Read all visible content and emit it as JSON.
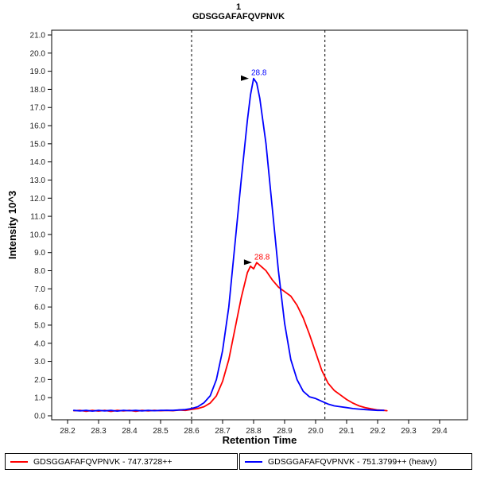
{
  "chart_data": {
    "type": "line",
    "title": "1",
    "subtitle": "GDSGGAFAFQVPNVK",
    "xlabel": "Retention Time",
    "ylabel": "Intensity 10^3",
    "xlim": [
      28.15,
      29.49
    ],
    "ylim": [
      -0.2,
      21.3
    ],
    "grid": false,
    "legend_position": "bottom",
    "x_ticks": [
      28.2,
      28.3,
      28.4,
      28.5,
      28.6,
      28.7,
      28.8,
      28.9,
      29.0,
      29.1,
      29.2,
      29.3,
      29.4
    ],
    "y_ticks": [
      0.0,
      1.0,
      2.0,
      3.0,
      4.0,
      5.0,
      6.0,
      7.0,
      8.0,
      9.0,
      10.0,
      11.0,
      12.0,
      13.0,
      14.0,
      15.0,
      16.0,
      17.0,
      18.0,
      19.0,
      20.0,
      21.0
    ],
    "integration_boundaries": [
      28.6,
      29.03
    ],
    "series": [
      {
        "name": "GDSGGAFAFQVPNVK - 747.3728++",
        "color": "#ff0000",
        "annotation": {
          "text": "28.8",
          "x": 28.81,
          "y": 8.45
        },
        "points": [
          [
            28.22,
            0.28
          ],
          [
            28.24,
            0.3
          ],
          [
            28.26,
            0.25
          ],
          [
            28.28,
            0.3
          ],
          [
            28.3,
            0.26
          ],
          [
            28.32,
            0.3
          ],
          [
            28.34,
            0.24
          ],
          [
            28.36,
            0.3
          ],
          [
            28.38,
            0.27
          ],
          [
            28.4,
            0.3
          ],
          [
            28.42,
            0.25
          ],
          [
            28.44,
            0.3
          ],
          [
            28.46,
            0.27
          ],
          [
            28.48,
            0.3
          ],
          [
            28.5,
            0.28
          ],
          [
            28.52,
            0.3
          ],
          [
            28.54,
            0.28
          ],
          [
            28.56,
            0.32
          ],
          [
            28.58,
            0.3
          ],
          [
            28.6,
            0.35
          ],
          [
            28.62,
            0.4
          ],
          [
            28.64,
            0.5
          ],
          [
            28.66,
            0.7
          ],
          [
            28.68,
            1.1
          ],
          [
            28.7,
            1.9
          ],
          [
            28.72,
            3.1
          ],
          [
            28.74,
            4.8
          ],
          [
            28.76,
            6.5
          ],
          [
            28.78,
            7.9
          ],
          [
            28.79,
            8.25
          ],
          [
            28.8,
            8.1
          ],
          [
            28.81,
            8.45
          ],
          [
            28.82,
            8.3
          ],
          [
            28.83,
            8.15
          ],
          [
            28.84,
            8.0
          ],
          [
            28.86,
            7.5
          ],
          [
            28.88,
            7.1
          ],
          [
            28.9,
            6.85
          ],
          [
            28.92,
            6.6
          ],
          [
            28.94,
            6.1
          ],
          [
            28.96,
            5.4
          ],
          [
            28.98,
            4.5
          ],
          [
            29.0,
            3.5
          ],
          [
            29.02,
            2.5
          ],
          [
            29.04,
            1.8
          ],
          [
            29.06,
            1.4
          ],
          [
            29.08,
            1.15
          ],
          [
            29.1,
            0.9
          ],
          [
            29.12,
            0.7
          ],
          [
            29.14,
            0.55
          ],
          [
            29.16,
            0.45
          ],
          [
            29.18,
            0.38
          ],
          [
            29.2,
            0.32
          ],
          [
            29.22,
            0.3
          ],
          [
            29.23,
            0.28
          ]
        ]
      },
      {
        "name": "GDSGGAFAFQVPNVK - 751.3799++ (heavy)",
        "color": "#0000ff",
        "annotation": {
          "text": "28.8",
          "x": 28.8,
          "y": 18.6
        },
        "points": [
          [
            28.22,
            0.3
          ],
          [
            28.24,
            0.27
          ],
          [
            28.26,
            0.3
          ],
          [
            28.28,
            0.26
          ],
          [
            28.3,
            0.3
          ],
          [
            28.32,
            0.27
          ],
          [
            28.34,
            0.3
          ],
          [
            28.36,
            0.26
          ],
          [
            28.38,
            0.3
          ],
          [
            28.4,
            0.28
          ],
          [
            28.42,
            0.3
          ],
          [
            28.44,
            0.27
          ],
          [
            28.46,
            0.3
          ],
          [
            28.48,
            0.28
          ],
          [
            28.5,
            0.3
          ],
          [
            28.52,
            0.3
          ],
          [
            28.54,
            0.3
          ],
          [
            28.56,
            0.32
          ],
          [
            28.58,
            0.34
          ],
          [
            28.6,
            0.4
          ],
          [
            28.62,
            0.5
          ],
          [
            28.64,
            0.72
          ],
          [
            28.66,
            1.1
          ],
          [
            28.68,
            2.0
          ],
          [
            28.7,
            3.6
          ],
          [
            28.72,
            6.0
          ],
          [
            28.74,
            9.5
          ],
          [
            28.76,
            13.0
          ],
          [
            28.78,
            16.3
          ],
          [
            28.79,
            17.7
          ],
          [
            28.8,
            18.6
          ],
          [
            28.81,
            18.35
          ],
          [
            28.82,
            17.5
          ],
          [
            28.84,
            15.0
          ],
          [
            28.86,
            11.5
          ],
          [
            28.88,
            8.0
          ],
          [
            28.9,
            5.1
          ],
          [
            28.92,
            3.1
          ],
          [
            28.94,
            2.0
          ],
          [
            28.96,
            1.35
          ],
          [
            28.98,
            1.05
          ],
          [
            29.0,
            0.95
          ],
          [
            29.02,
            0.8
          ],
          [
            29.04,
            0.65
          ],
          [
            29.06,
            0.55
          ],
          [
            29.08,
            0.5
          ],
          [
            29.1,
            0.45
          ],
          [
            29.12,
            0.4
          ],
          [
            29.14,
            0.37
          ],
          [
            29.16,
            0.34
          ],
          [
            29.18,
            0.32
          ],
          [
            29.2,
            0.3
          ],
          [
            29.22,
            0.3
          ]
        ]
      }
    ]
  }
}
